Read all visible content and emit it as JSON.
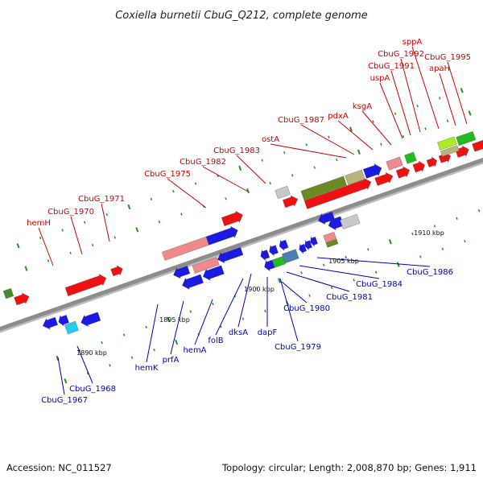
{
  "title": "Coxiella burnetii CbuG_Q212, complete genome",
  "footer": {
    "accession": "Accession: NC_011527",
    "summary": "Topology: circular; Length: 2,008,870 bp; Genes: 1,911"
  },
  "colors": {
    "forward_label": "#cc0000",
    "reverse_label": "#0000bb",
    "backbone": "#8c8c8c",
    "tick": "#2a8a2a"
  },
  "scale": {
    "kbp_start": 1885,
    "kbp_end": 1913,
    "major_tick_step_kbp": 5,
    "labels": [
      {
        "kbp": 1890,
        "text": "1890 kbp"
      },
      {
        "kbp": 1895,
        "text": "1895 kbp"
      },
      {
        "kbp": 1900,
        "text": "1900 kbp"
      },
      {
        "kbp": 1905,
        "text": "1905 kbp"
      },
      {
        "kbp": 1910,
        "text": "1910 kbp"
      }
    ]
  },
  "forward_labels": [
    {
      "text": "hemH"
    },
    {
      "text": "CbuG_1970"
    },
    {
      "text": "CbuG_1971"
    },
    {
      "text": "CbuG_1975"
    },
    {
      "text": "CbuG_1982"
    },
    {
      "text": "CbuG_1983"
    },
    {
      "text": "ostA"
    },
    {
      "text": "CbuG_1987"
    },
    {
      "text": "pdxA"
    },
    {
      "text": "ksgA"
    },
    {
      "text": "uspA"
    },
    {
      "text": "CbuG_1991"
    },
    {
      "text": "CbuG_1992"
    },
    {
      "text": "sppA"
    },
    {
      "text": "CbuG_1995"
    },
    {
      "text": "apaH"
    }
  ],
  "reverse_labels": [
    {
      "text": "CbuG_1967"
    },
    {
      "text": "CbuG_1968"
    },
    {
      "text": "hemK"
    },
    {
      "text": "prfA"
    },
    {
      "text": "hemA"
    },
    {
      "text": "folB"
    },
    {
      "text": "dksA"
    },
    {
      "text": "dapF"
    },
    {
      "text": "CbuG_1979"
    },
    {
      "text": "CbuG_1980"
    },
    {
      "text": "CbuG_1981"
    },
    {
      "text": "CbuG_1984"
    },
    {
      "text": "CbuG_1986"
    }
  ]
}
